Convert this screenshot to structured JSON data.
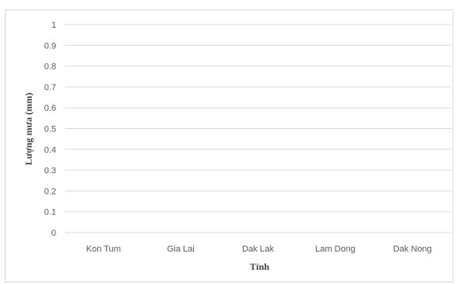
{
  "chart_data": {
    "type": "bar",
    "categories": [
      "Kon Tum",
      "Gia Lai",
      "Dak Lak",
      "Lam Dong",
      "Dak Nong"
    ],
    "values": [
      0,
      0,
      0,
      0,
      0
    ],
    "xlabel": "Tỉnh",
    "ylabel": "Lượng mưa (mm)",
    "ylim": [
      0,
      1
    ],
    "yticks": [
      "0",
      "0.1",
      "0.2",
      "0.3",
      "0.4",
      "0.5",
      "0.6",
      "0.7",
      "0.8",
      "0.9",
      "1"
    ],
    "grid": true,
    "legend": "none",
    "colors": {
      "gridline": "#d9d9d9",
      "tick_text": "#595959",
      "title_text": "#404040"
    }
  }
}
